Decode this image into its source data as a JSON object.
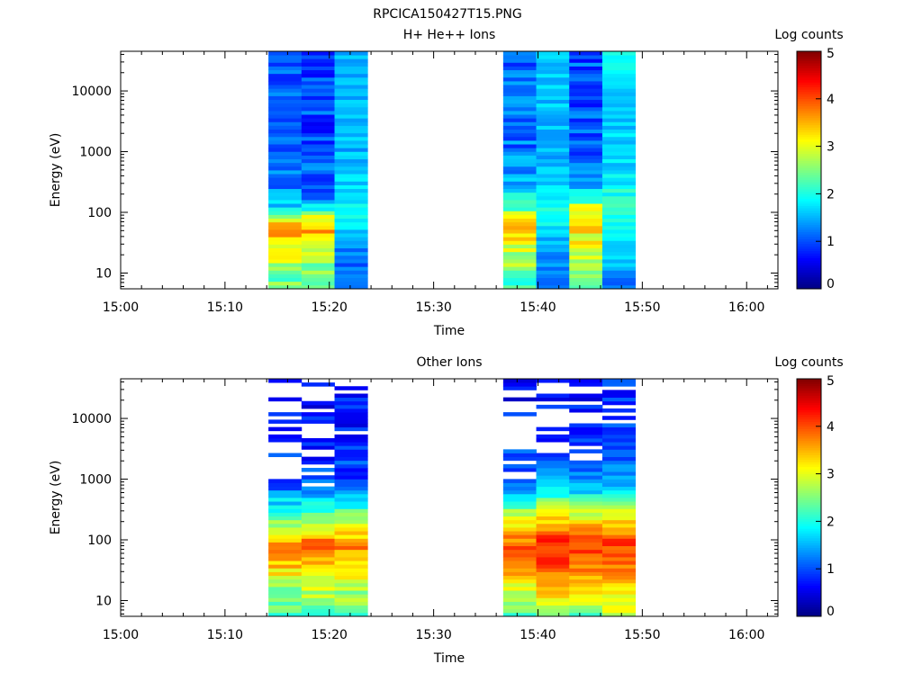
{
  "figure_title": "RPCICA150427T15.PNG",
  "chart_data": [
    {
      "type": "heatmap",
      "title": "H+ He++ Ions",
      "xlabel": "Time",
      "ylabel": "Energy (eV)",
      "x_ticks": [
        "15:00",
        "15:10",
        "15:20",
        "15:30",
        "15:40",
        "15:50",
        "16:00"
      ],
      "xlim": [
        "15:00",
        "16:03"
      ],
      "y_scale": "log",
      "y_ticks": [
        "10",
        "100",
        "1000",
        "10000"
      ],
      "ylim": [
        5.5,
        45000
      ],
      "colorbar": {
        "label": "Log counts",
        "range": [
          0,
          5
        ],
        "ticks": [
          "0",
          "1",
          "2",
          "3",
          "4",
          "5"
        ]
      },
      "columns": [
        {
          "start": "15:14:10",
          "end": "15:17:20",
          "profile": [
            [
              5,
              2.2
            ],
            [
              15,
              2.8
            ],
            [
              30,
              3.3
            ],
            [
              45,
              3.5
            ],
            [
              60,
              3.6
            ],
            [
              80,
              3.0
            ],
            [
              110,
              2.0
            ],
            [
              200,
              1.3
            ],
            [
              1000,
              1.1
            ],
            [
              45000,
              1.0
            ]
          ],
          "noise": 0.4
        },
        {
          "start": "15:17:20",
          "end": "15:20:30",
          "profile": [
            [
              5,
              2.3
            ],
            [
              15,
              2.6
            ],
            [
              30,
              3.0
            ],
            [
              45,
              3.4
            ],
            [
              60,
              3.5
            ],
            [
              80,
              3.0
            ],
            [
              110,
              1.9
            ],
            [
              200,
              1.2
            ],
            [
              1000,
              1.0
            ],
            [
              45000,
              0.9
            ]
          ],
          "noise": 0.4
        },
        {
          "start": "15:20:30",
          "end": "15:23:40",
          "profile": [
            [
              5,
              1.1
            ],
            [
              20,
              1.2
            ],
            [
              40,
              1.5
            ],
            [
              70,
              1.8
            ],
            [
              120,
              2.0
            ],
            [
              200,
              1.7
            ],
            [
              1000,
              1.5
            ],
            [
              45000,
              1.6
            ]
          ],
          "noise": 0.25
        },
        {
          "start": "15:36:40",
          "end": "15:39:50",
          "profile": [
            [
              5,
              2.2
            ],
            [
              15,
              2.6
            ],
            [
              30,
              3.0
            ],
            [
              50,
              3.5
            ],
            [
              70,
              3.6
            ],
            [
              100,
              2.6
            ],
            [
              200,
              1.7
            ],
            [
              1000,
              1.2
            ],
            [
              45000,
              1.1
            ]
          ],
          "noise": 0.4
        },
        {
          "start": "15:39:50",
          "end": "15:43:00",
          "profile": [
            [
              5,
              1.1
            ],
            [
              15,
              1.3
            ],
            [
              40,
              1.6
            ],
            [
              80,
              1.9
            ],
            [
              150,
              2.0
            ],
            [
              400,
              1.6
            ],
            [
              1000,
              1.5
            ],
            [
              45000,
              1.7
            ]
          ],
          "noise": 0.25
        },
        {
          "start": "15:43:00",
          "end": "15:46:10",
          "profile": [
            [
              5,
              2.0
            ],
            [
              15,
              2.6
            ],
            [
              30,
              3.0
            ],
            [
              60,
              3.2
            ],
            [
              100,
              3.3
            ],
            [
              200,
              1.8
            ],
            [
              1000,
              1.1
            ],
            [
              45000,
              1.0
            ]
          ],
          "noise": 0.4
        },
        {
          "start": "15:46:10",
          "end": "15:49:20",
          "profile": [
            [
              5,
              1.1
            ],
            [
              15,
              1.6
            ],
            [
              40,
              1.9
            ],
            [
              80,
              2.1
            ],
            [
              150,
              2.1
            ],
            [
              400,
              1.8
            ],
            [
              1000,
              1.6
            ],
            [
              45000,
              1.8
            ]
          ],
          "noise": 0.25
        }
      ]
    },
    {
      "type": "heatmap",
      "title": "Other Ions",
      "xlabel": "Time",
      "ylabel": "Energy (eV)",
      "x_ticks": [
        "15:00",
        "15:10",
        "15:20",
        "15:30",
        "15:40",
        "15:50",
        "16:00"
      ],
      "xlim": [
        "15:00",
        "16:03"
      ],
      "y_scale": "log",
      "y_ticks": [
        "10",
        "100",
        "1000",
        "10000"
      ],
      "ylim": [
        5.5,
        45000
      ],
      "colorbar": {
        "label": "Log counts",
        "range": [
          0,
          5
        ],
        "ticks": [
          "0",
          "1",
          "2",
          "3",
          "4",
          "5"
        ]
      },
      "columns": [
        {
          "start": "15:14:10",
          "end": "15:17:20",
          "profile": [
            [
              5,
              2.3
            ],
            [
              15,
              2.6
            ],
            [
              30,
              3.2
            ],
            [
              60,
              3.6
            ],
            [
              100,
              3.4
            ],
            [
              200,
              2.6
            ],
            [
              400,
              1.8
            ],
            [
              800,
              1.0
            ],
            [
              45000,
              0.5
            ]
          ],
          "noise": 0.35,
          "gap_above": 1000,
          "gap_prob": 0.55
        },
        {
          "start": "15:17:20",
          "end": "15:20:30",
          "profile": [
            [
              5,
              2.3
            ],
            [
              15,
              2.8
            ],
            [
              30,
              3.3
            ],
            [
              60,
              3.8
            ],
            [
              100,
              3.7
            ],
            [
              200,
              2.8
            ],
            [
              400,
              1.9
            ],
            [
              800,
              1.0
            ],
            [
              45000,
              0.5
            ]
          ],
          "noise": 0.35,
          "gap_above": 800,
          "gap_prob": 0.6
        },
        {
          "start": "15:20:30",
          "end": "15:23:40",
          "profile": [
            [
              5,
              2.3
            ],
            [
              15,
              2.7
            ],
            [
              30,
              3.2
            ],
            [
              60,
              3.7
            ],
            [
              100,
              3.6
            ],
            [
              200,
              2.7
            ],
            [
              400,
              1.8
            ],
            [
              800,
              1.0
            ],
            [
              45000,
              0.6
            ]
          ],
          "noise": 0.35,
          "gap_above": 3000,
          "gap_prob": 0.3
        },
        {
          "start": "15:36:40",
          "end": "15:39:50",
          "profile": [
            [
              5,
              2.2
            ],
            [
              15,
              3.0
            ],
            [
              30,
              3.5
            ],
            [
              60,
              3.9
            ],
            [
              100,
              3.8
            ],
            [
              200,
              3.1
            ],
            [
              400,
              2.2
            ],
            [
              800,
              1.2
            ],
            [
              45000,
              0.5
            ]
          ],
          "noise": 0.3,
          "gap_above": 1000,
          "gap_prob": 0.6
        },
        {
          "start": "15:39:50",
          "end": "15:43:00",
          "profile": [
            [
              5,
              2.7
            ],
            [
              15,
              3.3
            ],
            [
              30,
              3.8
            ],
            [
              60,
              4.2
            ],
            [
              100,
              4.3
            ],
            [
              200,
              3.4
            ],
            [
              400,
              2.5
            ],
            [
              800,
              1.5
            ],
            [
              2000,
              1.0
            ],
            [
              45000,
              0.6
            ]
          ],
          "noise": 0.3,
          "gap_above": 2000,
          "gap_prob": 0.4
        },
        {
          "start": "15:43:00",
          "end": "15:46:10",
          "profile": [
            [
              5,
              2.2
            ],
            [
              15,
              3.2
            ],
            [
              30,
              3.7
            ],
            [
              60,
              4.1
            ],
            [
              100,
              4.2
            ],
            [
              200,
              3.3
            ],
            [
              400,
              2.4
            ],
            [
              800,
              1.4
            ],
            [
              2000,
              0.9
            ],
            [
              45000,
              0.6
            ]
          ],
          "noise": 0.3,
          "gap_above": 2000,
          "gap_prob": 0.45
        },
        {
          "start": "15:46:10",
          "end": "15:49:20",
          "profile": [
            [
              5,
              2.9
            ],
            [
              15,
              3.1
            ],
            [
              30,
              3.6
            ],
            [
              60,
              4.0
            ],
            [
              100,
              4.1
            ],
            [
              200,
              3.3
            ],
            [
              400,
              2.5
            ],
            [
              800,
              1.6
            ],
            [
              2000,
              1.1
            ],
            [
              45000,
              0.8
            ]
          ],
          "noise": 0.3,
          "gap_above": 6000,
          "gap_prob": 0.3
        }
      ]
    }
  ]
}
